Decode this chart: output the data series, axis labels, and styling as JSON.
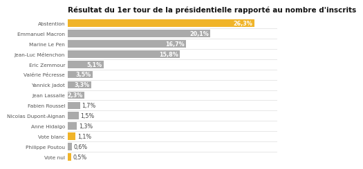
{
  "title": "Résultat du 1er tour de la présidentielle rapporté au nombre d'inscrits",
  "categories": [
    "Vote nul",
    "Philippe Poutou",
    "Vote blanc",
    "Anne Hidalgo",
    "Nicolas Dupont-Aignan",
    "Fabien Roussel",
    "Jean Lassalle",
    "Yannick Jadot",
    "Valérie Pécresse",
    "Eric Zemmour",
    "Jean-Luc Mélenchon",
    "Marine Le Pen",
    "Emmanuel Macron",
    "Abstention"
  ],
  "values": [
    0.5,
    0.6,
    1.1,
    1.3,
    1.5,
    1.7,
    2.3,
    3.3,
    3.5,
    5.1,
    15.8,
    16.7,
    20.1,
    26.3
  ],
  "colors": [
    "#f0b429",
    "#aaaaaa",
    "#f0b429",
    "#aaaaaa",
    "#aaaaaa",
    "#aaaaaa",
    "#aaaaaa",
    "#aaaaaa",
    "#aaaaaa",
    "#aaaaaa",
    "#aaaaaa",
    "#aaaaaa",
    "#aaaaaa",
    "#f0b429"
  ],
  "background_color": "#ffffff",
  "title_fontsize": 7.5,
  "bar_height": 0.72,
  "xlim": [
    0,
    29.5
  ],
  "inside_threshold": 2.3,
  "label_fontsize": 5.8,
  "cat_fontsize": 5.3
}
